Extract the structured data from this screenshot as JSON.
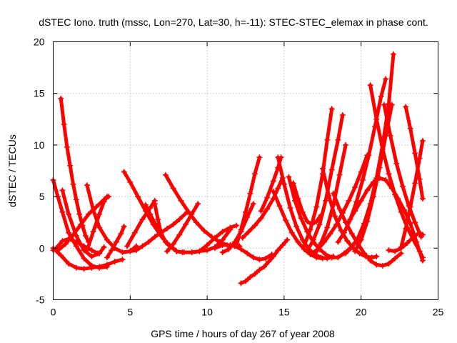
{
  "chart_data": {
    "type": "scatter",
    "title": "dSTEC Iono. truth (mssc, Lon=270, Lat=30, h=-11): STEC-STEC_elemax in phase cont.",
    "xlabel": "GPS time / hours of day 267 of year 2008",
    "ylabel": "dSTEC  / TECUs",
    "xlim": [
      0,
      25
    ],
    "ylim": [
      -5,
      20
    ],
    "x_ticks": [
      0,
      5,
      10,
      15,
      20,
      25
    ],
    "y_ticks": [
      -5,
      0,
      5,
      10,
      15,
      20
    ],
    "x_tick_labels": [
      "0",
      "5",
      "10",
      "15",
      "20",
      "25"
    ],
    "y_tick_labels": [
      "-5",
      "0",
      "5",
      "10",
      "15",
      "20"
    ],
    "grid": true,
    "marker": "+",
    "series_color": "#ff0000",
    "series": [
      {
        "x": [
          0.0,
          0.3,
          0.6,
          1.0,
          1.5,
          2.0,
          2.5,
          3.0,
          3.5
        ],
        "y": [
          6.6,
          5.0,
          3.5,
          1.5,
          0.2,
          -1.0,
          -1.7,
          -1.9,
          -1.8
        ]
      },
      {
        "x": [
          0.0,
          0.4,
          0.8,
          1.3,
          1.8,
          2.3,
          2.8,
          3.3,
          3.6
        ],
        "y": [
          -0.2,
          -0.1,
          0.4,
          1.3,
          2.3,
          3.3,
          4.0,
          4.7,
          5.0
        ]
      },
      {
        "x": [
          0.0,
          0.5,
          1.0,
          1.5,
          2.0,
          2.5,
          3.0,
          3.5,
          4.0,
          4.5
        ],
        "y": [
          0.0,
          -0.7,
          -1.5,
          -1.9,
          -2.0,
          -1.9,
          -1.8,
          -1.6,
          -1.3,
          -1.1
        ]
      },
      {
        "x": [
          0.5,
          0.7,
          0.9,
          1.1,
          1.3,
          1.5,
          1.7,
          1.9,
          2.1,
          2.3
        ],
        "y": [
          14.5,
          12.0,
          9.8,
          8.0,
          6.2,
          4.7,
          3.3,
          2.2,
          1.2,
          0.6
        ]
      },
      {
        "x": [
          0.6,
          1.0,
          1.5,
          2.0,
          2.5,
          3.0,
          3.3
        ],
        "y": [
          5.6,
          3.3,
          1.2,
          -0.2,
          -0.8,
          -0.5,
          0.1
        ]
      },
      {
        "x": [
          0.2,
          0.6,
          1.0,
          1.5,
          2.0,
          2.5,
          2.9
        ],
        "y": [
          0.0,
          0.7,
          0.9,
          0.6,
          0.2,
          -0.2,
          -0.5
        ]
      },
      {
        "x": [
          2.2,
          2.6,
          3.0,
          3.5,
          4.0,
          4.5,
          5.0,
          5.4
        ],
        "y": [
          6.1,
          3.7,
          2.0,
          0.8,
          0.0,
          -0.4,
          -0.3,
          0.2
        ]
      },
      {
        "x": [
          2.2,
          2.6,
          3.0,
          3.3,
          3.5
        ],
        "y": [
          -0.2,
          1.6,
          3.3,
          4.5,
          5.0
        ]
      },
      {
        "x": [
          3.5,
          3.8,
          4.1,
          4.4,
          4.6
        ],
        "y": [
          -0.9,
          -0.2,
          0.6,
          1.4,
          2.1
        ]
      },
      {
        "x": [
          4.6,
          5.0,
          5.5,
          6.0,
          6.5,
          7.0,
          7.5,
          8.0,
          8.4
        ],
        "y": [
          7.4,
          6.4,
          5.0,
          3.6,
          2.3,
          1.2,
          0.3,
          -0.3,
          -0.4
        ]
      },
      {
        "x": [
          4.8,
          5.3,
          5.8,
          6.3,
          6.6
        ],
        "y": [
          0.2,
          1.5,
          2.8,
          3.9,
          4.6
        ]
      },
      {
        "x": [
          5.0,
          5.4,
          5.8,
          6.2,
          6.6,
          7.0,
          7.4,
          7.8,
          8.2,
          8.7
        ],
        "y": [
          -0.3,
          -0.2,
          0.2,
          0.6,
          1.1,
          1.5,
          1.9,
          2.3,
          2.8,
          3.5
        ]
      },
      {
        "x": [
          6.0,
          6.3,
          6.6,
          7.0,
          7.4,
          7.8
        ],
        "y": [
          4.2,
          3.3,
          2.4,
          1.3,
          0.5,
          0.0
        ]
      },
      {
        "x": [
          6.6,
          6.8,
          7.0,
          7.3
        ],
        "y": [
          4.3,
          2.8,
          1.5,
          0.6
        ]
      },
      {
        "x": [
          7.3,
          7.8,
          8.3,
          8.8,
          9.3,
          9.8,
          10.3,
          10.8,
          11.3,
          11.8,
          12.1
        ],
        "y": [
          7.1,
          5.8,
          4.6,
          3.5,
          2.5,
          1.7,
          1.1,
          0.6,
          0.3,
          0.2,
          0.2
        ]
      },
      {
        "x": [
          7.4,
          7.8,
          8.2,
          8.6,
          9.0,
          9.4
        ],
        "y": [
          -0.3,
          0.4,
          1.3,
          2.3,
          3.3,
          4.3
        ]
      },
      {
        "x": [
          8.0,
          8.5,
          9.0,
          9.5,
          10.0,
          10.5,
          11.0,
          11.5
        ],
        "y": [
          -0.3,
          -0.4,
          -0.4,
          -0.3,
          -0.2,
          0.1,
          0.8,
          1.8
        ]
      },
      {
        "x": [
          9.0,
          9.5,
          10.0,
          10.5,
          11.0,
          11.5,
          11.9
        ],
        "y": [
          -0.4,
          -0.3,
          0.3,
          1.0,
          1.6,
          2.0,
          2.2
        ]
      },
      {
        "x": [
          11.0,
          11.4,
          11.8,
          12.2,
          12.6,
          13.0
        ],
        "y": [
          -0.4,
          -0.1,
          0.6,
          1.6,
          3.0,
          4.3
        ]
      },
      {
        "x": [
          10.5,
          11.0,
          11.5,
          11.8,
          12.2,
          12.6,
          13.0,
          13.4,
          13.8,
          14.2
        ],
        "y": [
          0.0,
          0.3,
          0.3,
          0.2,
          -0.1,
          -0.5,
          -0.9,
          -1.1,
          -1.0,
          -0.6
        ]
      },
      {
        "x": [
          12.2,
          12.5,
          12.8,
          13.1,
          13.4,
          13.7,
          14.0,
          14.3,
          14.6,
          14.9,
          15.2
        ],
        "y": [
          -3.4,
          -3.2,
          -2.8,
          -2.5,
          -2.1,
          -1.8,
          -1.3,
          -0.8,
          -0.2,
          0.3,
          0.8
        ]
      },
      {
        "x": [
          11.9,
          12.2,
          12.5,
          12.8,
          13.1,
          13.4
        ],
        "y": [
          0.3,
          1.8,
          3.5,
          5.3,
          7.2,
          8.8
        ]
      },
      {
        "x": [
          12.3,
          12.7,
          13.1,
          13.5,
          13.9,
          14.3,
          14.6,
          14.9
        ],
        "y": [
          1.0,
          1.6,
          2.2,
          2.9,
          3.8,
          4.8,
          5.8,
          6.8
        ]
      },
      {
        "x": [
          13.5,
          13.9,
          14.3,
          14.6,
          14.8
        ],
        "y": [
          3.6,
          4.9,
          6.5,
          7.8,
          8.8
        ]
      },
      {
        "x": [
          14.3,
          14.7,
          15.1,
          15.5,
          15.9,
          16.3,
          16.7,
          17.1,
          17.5
        ],
        "y": [
          5.5,
          4.1,
          2.7,
          1.5,
          0.6,
          -0.1,
          -0.6,
          -0.9,
          -1.0
        ]
      },
      {
        "x": [
          14.6,
          15.0,
          15.4,
          15.8,
          16.2,
          16.6,
          17.0,
          17.4,
          17.8,
          18.2
        ],
        "y": [
          8.8,
          6.2,
          3.9,
          2.1,
          0.8,
          -0.1,
          -0.6,
          -0.9,
          -1.0,
          -0.8
        ]
      },
      {
        "x": [
          15.3,
          15.7,
          16.1,
          16.5,
          16.9,
          17.3,
          17.7,
          18.1,
          18.5,
          18.9,
          19.3,
          19.6
        ],
        "y": [
          6.9,
          4.6,
          2.9,
          1.6,
          0.6,
          -0.1,
          -0.6,
          -0.9,
          -0.9,
          -0.5,
          0.0,
          0.5
        ]
      },
      {
        "x": [
          15.6,
          15.9,
          16.2,
          16.5,
          16.8,
          17.1,
          17.4
        ],
        "y": [
          6.3,
          4.8,
          3.5,
          2.6,
          2.3,
          2.6,
          3.2
        ]
      },
      {
        "x": [
          16.3,
          16.7,
          17.1,
          17.5,
          17.8,
          18.1
        ],
        "y": [
          0.2,
          1.8,
          4.0,
          7.2,
          10.5,
          13.5
        ]
      },
      {
        "x": [
          16.5,
          16.9,
          17.3,
          17.7,
          18.1,
          18.5,
          18.8
        ],
        "y": [
          -0.3,
          0.8,
          2.3,
          4.6,
          7.6,
          10.5,
          12.9
        ]
      },
      {
        "x": [
          17.0,
          17.4,
          17.8,
          18.2,
          18.6,
          19.0
        ],
        "y": [
          -0.6,
          0.5,
          2.0,
          4.2,
          7.1,
          10.0
        ]
      },
      {
        "x": [
          16.8,
          17.2,
          17.6,
          18.0,
          18.4,
          18.8,
          19.2,
          19.6,
          20.0,
          20.4
        ],
        "y": [
          -0.5,
          -0.1,
          0.6,
          1.4,
          2.3,
          3.4,
          4.6,
          5.9,
          7.4,
          9.0
        ]
      },
      {
        "x": [
          17.5,
          17.9,
          18.3,
          18.7,
          19.1,
          19.5,
          19.9,
          20.3,
          20.7,
          21.0
        ],
        "y": [
          7.7,
          5.1,
          3.1,
          1.7,
          0.7,
          0.0,
          -0.5,
          -0.8,
          -0.9,
          -0.8
        ]
      },
      {
        "x": [
          18.2,
          18.6,
          19.0,
          19.4,
          19.8,
          20.2,
          20.6,
          21.0,
          21.4,
          21.8,
          22.2,
          22.6
        ],
        "y": [
          5.3,
          3.8,
          2.5,
          1.4,
          0.4,
          -0.5,
          -1.2,
          -1.6,
          -1.7,
          -1.5,
          -1.0,
          -0.5
        ]
      },
      {
        "x": [
          18.5,
          18.9,
          19.3,
          19.7,
          20.1,
          20.5,
          20.9,
          21.3,
          21.6
        ],
        "y": [
          0.6,
          1.5,
          2.8,
          4.5,
          6.6,
          9.0,
          11.8,
          14.7,
          16.4
        ]
      },
      {
        "x": [
          19.0,
          19.4,
          19.8,
          20.2,
          20.6,
          21.0,
          21.4,
          21.8,
          22.1
        ],
        "y": [
          -0.5,
          0.1,
          1.0,
          2.4,
          4.3,
          6.8,
          10.0,
          14.0,
          18.8
        ]
      },
      {
        "x": [
          19.6,
          20.0,
          20.4,
          20.8,
          21.2,
          21.6,
          22.0
        ],
        "y": [
          -0.3,
          0.8,
          2.6,
          5.0,
          7.8,
          10.9,
          13.9
        ]
      },
      {
        "x": [
          19.2,
          19.6,
          20.0,
          20.4,
          20.8,
          21.2,
          21.6,
          22.0,
          22.4,
          22.8,
          23.2,
          23.6,
          24.0
        ],
        "y": [
          2.6,
          3.6,
          4.6,
          5.6,
          6.4,
          6.8,
          6.6,
          5.8,
          4.8,
          3.7,
          2.4,
          0.6,
          -1.2
        ]
      },
      {
        "x": [
          20.6,
          21.0,
          21.4,
          21.8,
          22.2,
          22.6,
          23.0,
          23.4,
          23.8,
          24.0
        ],
        "y": [
          15.8,
          12.5,
          9.6,
          7.2,
          5.2,
          3.5,
          2.0,
          0.8,
          -0.3,
          -0.9
        ]
      },
      {
        "x": [
          21.5,
          21.9,
          22.3,
          22.7,
          23.1,
          23.5,
          23.9
        ],
        "y": [
          13.9,
          10.9,
          8.2,
          6.0,
          4.1,
          2.5,
          1.1
        ]
      },
      {
        "x": [
          21.8,
          22.2,
          22.6,
          23.0,
          23.4,
          23.8,
          24.0
        ],
        "y": [
          -0.2,
          -0.3,
          0.0,
          0.5,
          1.1,
          1.5,
          1.3
        ]
      },
      {
        "x": [
          22.9,
          23.2,
          23.5,
          23.8,
          24.0
        ],
        "y": [
          13.7,
          11.6,
          9.2,
          6.7,
          4.8
        ]
      },
      {
        "x": [
          22.6,
          22.9,
          23.2,
          23.5,
          23.8,
          24.0
        ],
        "y": [
          0.1,
          1.9,
          4.0,
          6.3,
          8.7,
          10.4
        ]
      }
    ]
  }
}
